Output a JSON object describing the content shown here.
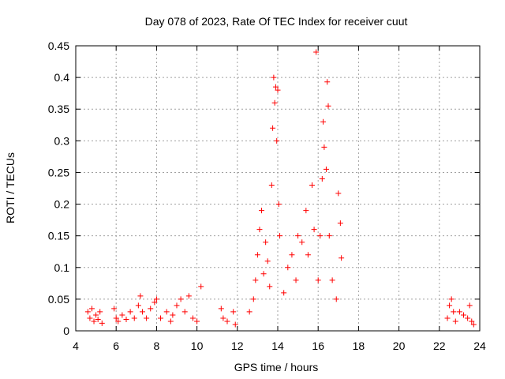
{
  "chart_data": {
    "type": "scatter",
    "title": "Day 078 of 2023, Rate Of TEC Index for receiver cuut",
    "xlabel": "GPS time / hours",
    "ylabel": "ROTI / TECUs",
    "xlim": [
      4,
      24
    ],
    "ylim": [
      0,
      0.45
    ],
    "x_ticks": [
      "4",
      "6",
      "8",
      "10",
      "12",
      "14",
      "16",
      "18",
      "20",
      "22",
      "24"
    ],
    "y_ticks": [
      "0",
      "0.05",
      "0.1",
      "0.15",
      "0.2",
      "0.25",
      "0.3",
      "0.35",
      "0.4",
      "0.45"
    ],
    "grid": true,
    "marker": "+",
    "color": "#ff0000",
    "series": [
      {
        "points": [
          [
            4.6,
            0.03
          ],
          [
            4.7,
            0.02
          ],
          [
            4.8,
            0.035
          ],
          [
            4.9,
            0.015
          ],
          [
            5.0,
            0.025
          ],
          [
            5.1,
            0.018
          ],
          [
            5.2,
            0.03
          ],
          [
            5.3,
            0.012
          ],
          [
            5.9,
            0.035
          ],
          [
            6.0,
            0.02
          ],
          [
            6.1,
            0.015
          ],
          [
            6.3,
            0.025
          ],
          [
            6.5,
            0.018
          ],
          [
            6.7,
            0.03
          ],
          [
            6.9,
            0.02
          ],
          [
            7.1,
            0.04
          ],
          [
            7.2,
            0.055
          ],
          [
            7.3,
            0.03
          ],
          [
            7.5,
            0.02
          ],
          [
            7.7,
            0.035
          ],
          [
            7.9,
            0.045
          ],
          [
            8.0,
            0.05
          ],
          [
            8.2,
            0.02
          ],
          [
            8.5,
            0.03
          ],
          [
            8.7,
            0.015
          ],
          [
            8.8,
            0.025
          ],
          [
            9.0,
            0.04
          ],
          [
            9.2,
            0.05
          ],
          [
            9.4,
            0.03
          ],
          [
            9.6,
            0.055
          ],
          [
            9.8,
            0.02
          ],
          [
            10.0,
            0.015
          ],
          [
            10.2,
            0.07
          ],
          [
            11.2,
            0.035
          ],
          [
            11.3,
            0.02
          ],
          [
            11.5,
            0.015
          ],
          [
            11.8,
            0.03
          ],
          [
            11.9,
            0.01
          ],
          [
            12.6,
            0.03
          ],
          [
            12.8,
            0.05
          ],
          [
            12.9,
            0.08
          ],
          [
            13.0,
            0.12
          ],
          [
            13.1,
            0.16
          ],
          [
            13.2,
            0.19
          ],
          [
            13.3,
            0.09
          ],
          [
            13.4,
            0.14
          ],
          [
            13.5,
            0.11
          ],
          [
            13.6,
            0.07
          ],
          [
            13.7,
            0.23
          ],
          [
            13.75,
            0.32
          ],
          [
            13.8,
            0.4
          ],
          [
            13.85,
            0.36
          ],
          [
            13.9,
            0.385
          ],
          [
            13.95,
            0.3
          ],
          [
            14.0,
            0.38
          ],
          [
            14.05,
            0.2
          ],
          [
            14.1,
            0.15
          ],
          [
            14.3,
            0.06
          ],
          [
            14.5,
            0.1
          ],
          [
            14.7,
            0.12
          ],
          [
            14.9,
            0.08
          ],
          [
            15.0,
            0.15
          ],
          [
            15.2,
            0.14
          ],
          [
            15.4,
            0.19
          ],
          [
            15.5,
            0.12
          ],
          [
            15.7,
            0.23
          ],
          [
            15.8,
            0.16
          ],
          [
            15.9,
            0.44
          ],
          [
            16.0,
            0.08
          ],
          [
            16.1,
            0.15
          ],
          [
            16.2,
            0.24
          ],
          [
            16.25,
            0.33
          ],
          [
            16.3,
            0.29
          ],
          [
            16.4,
            0.255
          ],
          [
            16.45,
            0.393
          ],
          [
            16.5,
            0.355
          ],
          [
            16.55,
            0.15
          ],
          [
            16.7,
            0.08
          ],
          [
            16.9,
            0.05
          ],
          [
            17.0,
            0.217
          ],
          [
            17.1,
            0.17
          ],
          [
            17.15,
            0.115
          ],
          [
            22.4,
            0.02
          ],
          [
            22.5,
            0.04
          ],
          [
            22.6,
            0.05
          ],
          [
            22.7,
            0.03
          ],
          [
            22.8,
            0.015
          ],
          [
            23.0,
            0.03
          ],
          [
            23.2,
            0.025
          ],
          [
            23.4,
            0.02
          ],
          [
            23.5,
            0.04
          ],
          [
            23.6,
            0.015
          ],
          [
            23.7,
            0.01
          ]
        ]
      }
    ]
  }
}
